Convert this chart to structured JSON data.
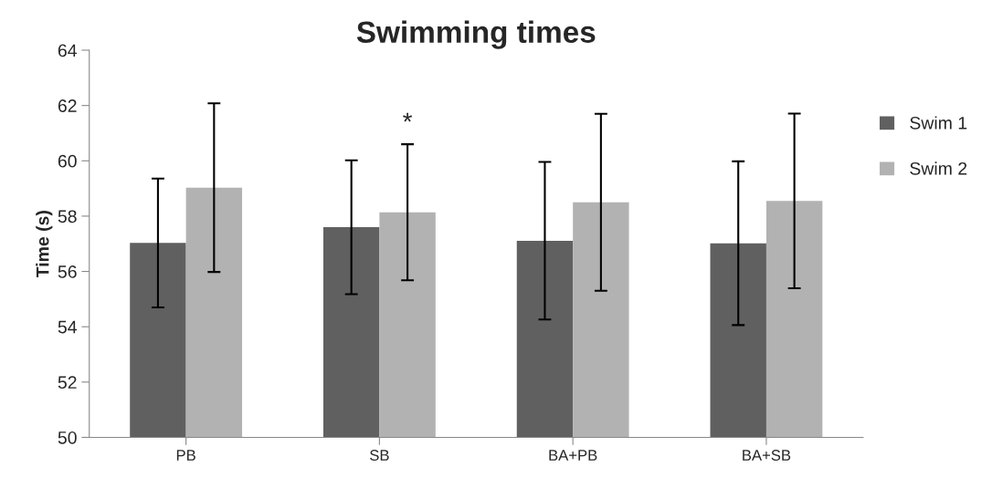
{
  "chart_data": {
    "type": "bar",
    "title": "Swimming times",
    "ylabel": "Time (s)",
    "categories": [
      "PB",
      "SB",
      "BA+PB",
      "BA+SB"
    ],
    "series": [
      {
        "name": "Swim 1",
        "color": "#606060",
        "values": [
          57.03,
          57.6,
          57.11,
          57.02
        ],
        "errors": [
          2.33,
          2.42,
          2.85,
          2.96
        ]
      },
      {
        "name": "Swim 2",
        "color": "#b2b2b2",
        "values": [
          59.03,
          58.14,
          58.5,
          58.55
        ],
        "errors": [
          3.05,
          2.46,
          3.2,
          3.16
        ]
      }
    ],
    "ylim": [
      50,
      64
    ],
    "yticks": [
      50,
      52,
      54,
      56,
      58,
      60,
      62,
      64
    ],
    "annotations": [
      "*"
    ],
    "legend": "right",
    "grid": false
  }
}
